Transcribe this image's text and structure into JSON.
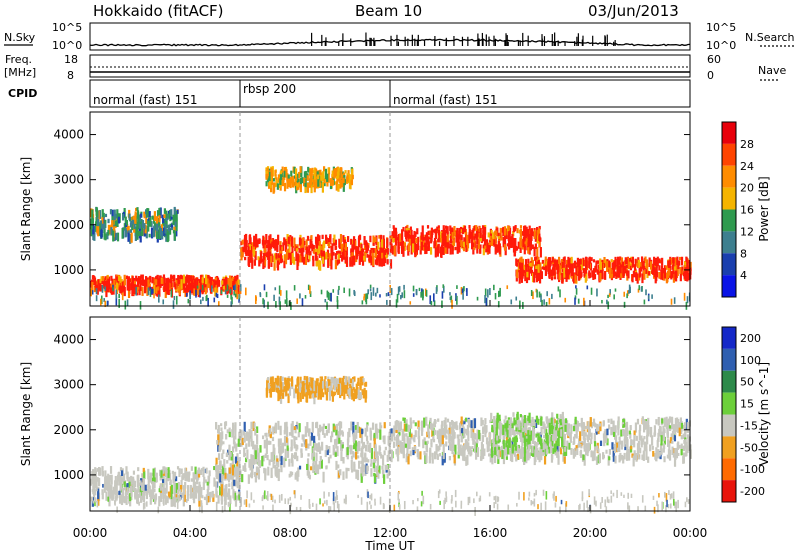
{
  "header": {
    "station": "Hokkaido (fitACF)",
    "beam": "Beam 10",
    "date": "03/Jun/2013"
  },
  "top_panels": {
    "nsky_label": "N.Sky",
    "nsearch_label": "N.Search",
    "noise_ticks": [
      "10^5",
      "10^0"
    ],
    "freq_label_1": "Freq.",
    "freq_label_2": "[MHz]",
    "freq_ticks": [
      "18",
      "8"
    ],
    "nave_label": "Nave",
    "nave_ticks": [
      "60",
      "0"
    ],
    "cpid_label": "CPID",
    "cpid_segments": [
      {
        "name": "normal (fast) 151",
        "start_hour": 0,
        "end_hour": 6
      },
      {
        "name": "rbsp 200",
        "start_hour": 6,
        "end_hour": 12
      },
      {
        "name": "normal (fast) 151",
        "start_hour": 12,
        "end_hour": 24
      }
    ]
  },
  "x_axis": {
    "label": "Time UT",
    "ticks": [
      "00:00",
      "04:00",
      "08:00",
      "12:00",
      "16:00",
      "20:00",
      "00:00"
    ]
  },
  "chart_data": [
    {
      "type": "heatmap",
      "title": "",
      "ylabel": "Slant Range [km]",
      "y_ticks": [
        1000,
        2000,
        3000,
        4000
      ],
      "ylim": [
        200,
        4500
      ],
      "xlim_hours": [
        0,
        24
      ],
      "colorbar": {
        "label": "Power [dB]",
        "ticks": [
          "28",
          "24",
          "20",
          "16",
          "12",
          "8",
          "4"
        ],
        "colors": [
          "#e8000b",
          "#ff4400",
          "#ff8c00",
          "#f5b400",
          "#2f9a4f",
          "#3d7f8f",
          "#1a3fae",
          "#0a14e6"
        ]
      },
      "main_echo_bands": [
        {
          "start_hour": 0.0,
          "end_hour": 6.0,
          "range_km": [
            600,
            900
          ],
          "level_db": 28
        },
        {
          "start_hour": 0.0,
          "end_hour": 3.5,
          "range_km": [
            1800,
            2400
          ],
          "level_db": 14
        },
        {
          "start_hour": 6.0,
          "end_hour": 12.0,
          "range_km": [
            1200,
            1800
          ],
          "level_db": 26
        },
        {
          "start_hour": 7.0,
          "end_hour": 10.5,
          "range_km": [
            2900,
            3300
          ],
          "level_db": 18
        },
        {
          "start_hour": 12.0,
          "end_hour": 18.0,
          "range_km": [
            1500,
            2000
          ],
          "level_db": 28
        },
        {
          "start_hour": 17.0,
          "end_hour": 24.0,
          "range_km": [
            900,
            1300
          ],
          "level_db": 27
        }
      ]
    },
    {
      "type": "heatmap",
      "title": "",
      "ylabel": "Slant Range [km]",
      "y_ticks": [
        1000,
        2000,
        3000,
        4000
      ],
      "ylim": [
        200,
        4500
      ],
      "xlim_hours": [
        0,
        24
      ],
      "colorbar": {
        "label": "Velocity [m s^-1]",
        "ticks": [
          "200",
          "100",
          "50",
          "15",
          "-15",
          "-50",
          "-100",
          "-200"
        ],
        "colors": [
          "#1428c8",
          "#2f5fb0",
          "#2d8a4a",
          "#6ccf3a",
          "#c8c8c0",
          "#f0a020",
          "#ff6a00",
          "#e8140b"
        ]
      },
      "main_echo_bands": [
        {
          "start_hour": 0.0,
          "end_hour": 6.0,
          "range_km": [
            500,
            1200
          ],
          "velocity": 0
        },
        {
          "start_hour": 5.0,
          "end_hour": 12.0,
          "range_km": [
            1000,
            2200
          ],
          "velocity": 0
        },
        {
          "start_hour": 7.0,
          "end_hour": 11.0,
          "range_km": [
            2800,
            3200
          ],
          "velocity": -50
        },
        {
          "start_hour": 12.0,
          "end_hour": 24.0,
          "range_km": [
            1400,
            2300
          ],
          "velocity": 0
        },
        {
          "start_hour": 16.0,
          "end_hour": 19.0,
          "range_km": [
            1500,
            2400
          ],
          "velocity": 30
        }
      ]
    }
  ]
}
